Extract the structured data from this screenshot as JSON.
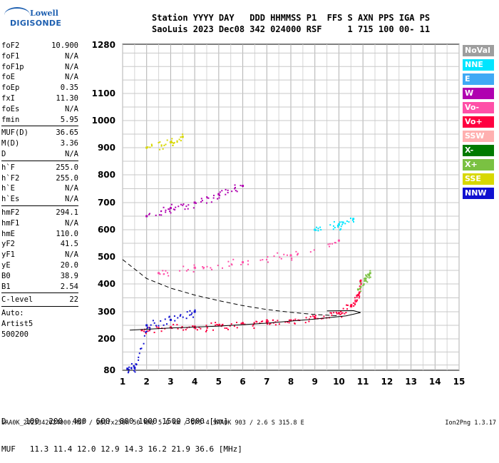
{
  "logo": {
    "line1": "Lowell",
    "line2": "DIGISONDE"
  },
  "header": {
    "line1": "Station YYYY DAY   DDD HHMMSS P1  FFS S AXN PPS IGA PS",
    "line2": "SaoLuis 2023 Dec08 342 024000 RSF     1 715 100 00- 11"
  },
  "params": {
    "groups": [
      [
        {
          "name": "foF2",
          "value": "10.900"
        },
        {
          "name": "foF1",
          "value": "N/A"
        },
        {
          "name": "foF1p",
          "value": "N/A"
        },
        {
          "name": "foE",
          "value": "N/A"
        },
        {
          "name": "foEp",
          "value": "0.35"
        },
        {
          "name": "fxI",
          "value": "11.30"
        },
        {
          "name": "foEs",
          "value": "N/A"
        },
        {
          "name": "fmin",
          "value": "5.95"
        }
      ],
      [
        {
          "name": "MUF(D)",
          "value": "36.65"
        },
        {
          "name": "M(D)",
          "value": "3.36"
        },
        {
          "name": "D",
          "value": "N/A"
        }
      ],
      [
        {
          "name": "h`F",
          "value": "255.0"
        },
        {
          "name": "h`F2",
          "value": "255.0"
        },
        {
          "name": "h`E",
          "value": "N/A"
        },
        {
          "name": "h`Es",
          "value": "N/A"
        }
      ],
      [
        {
          "name": "hmF2",
          "value": "294.1"
        },
        {
          "name": "hmF1",
          "value": "N/A"
        },
        {
          "name": "hmE",
          "value": "110.0"
        },
        {
          "name": "yF2",
          "value": "41.5"
        },
        {
          "name": "yF1",
          "value": "N/A"
        },
        {
          "name": "yE",
          "value": "20.0"
        },
        {
          "name": "B0",
          "value": "38.9"
        },
        {
          "name": "B1",
          "value": "2.54"
        }
      ],
      [
        {
          "name": "C-level",
          "value": "22"
        }
      ]
    ],
    "footer_lines": [
      "Auto:",
      "Artist5",
      "500200"
    ]
  },
  "legend": [
    {
      "label": "NoVal",
      "color": "#9e9e9e"
    },
    {
      "label": "NNE",
      "color": "#00e5ff"
    },
    {
      "label": "E",
      "color": "#3fa9f5"
    },
    {
      "label": "W",
      "color": "#b000b0"
    },
    {
      "label": "Vo-",
      "color": "#ff4fa8"
    },
    {
      "label": "Vo+",
      "color": "#ff0040"
    },
    {
      "label": "SSW",
      "color": "#ffb0b0"
    },
    {
      "label": "X-",
      "color": "#007a00"
    },
    {
      "label": "X+",
      "color": "#7ac142"
    },
    {
      "label": "SSE",
      "color": "#d8d800"
    },
    {
      "label": "NNW",
      "color": "#1010d0"
    }
  ],
  "chart_data": {
    "type": "scatter",
    "title": "",
    "xlabel": "",
    "ylabel": "",
    "xlim": [
      1,
      15
    ],
    "ylim_log": [
      80,
      1280
    ],
    "y_scale": "log",
    "grid": true,
    "legend_position": "right",
    "x_ticks": [
      1,
      2,
      3,
      4,
      5,
      6,
      7,
      8,
      9,
      10,
      11,
      12,
      13,
      14,
      15
    ],
    "y_ticks": [
      80,
      200,
      300,
      400,
      500,
      600,
      700,
      800,
      900,
      1000,
      1100,
      1280
    ],
    "series": [
      {
        "name": "Vo+",
        "points": [
          [
            1.8,
            232
          ],
          [
            3,
            242
          ],
          [
            4,
            245
          ],
          [
            5,
            250
          ],
          [
            6,
            258
          ],
          [
            7,
            262
          ],
          [
            8,
            268
          ],
          [
            9,
            278
          ],
          [
            10,
            295
          ],
          [
            10.5,
            320
          ],
          [
            10.8,
            360
          ],
          [
            10.9,
            410
          ]
        ]
      },
      {
        "name": "Vo-",
        "points": [
          [
            2.5,
            440
          ],
          [
            4,
            460
          ],
          [
            6,
            480
          ],
          [
            8,
            505
          ],
          [
            10,
            560
          ]
        ]
      },
      {
        "name": "W",
        "points": [
          [
            2,
            650
          ],
          [
            3,
            680
          ],
          [
            4,
            700
          ],
          [
            5,
            730
          ],
          [
            6,
            760
          ]
        ]
      },
      {
        "name": "NNW",
        "points": [
          [
            1.2,
            86
          ],
          [
            1.5,
            90
          ],
          [
            2,
            250
          ],
          [
            3,
            270
          ],
          [
            4,
            300
          ]
        ]
      },
      {
        "name": "SSE",
        "points": [
          [
            2,
            900
          ],
          [
            3,
            920
          ],
          [
            3.5,
            940
          ]
        ]
      },
      {
        "name": "NNE",
        "points": [
          [
            9,
            600
          ],
          [
            10,
            620
          ],
          [
            10.6,
            640
          ]
        ]
      },
      {
        "name": "X+",
        "points": [
          [
            10.8,
            380
          ],
          [
            11.1,
            420
          ],
          [
            11.3,
            440
          ]
        ]
      }
    ],
    "trace_solid": [
      [
        1.3,
        232
      ],
      [
        3,
        240
      ],
      [
        5,
        247
      ],
      [
        7,
        258
      ],
      [
        9,
        273
      ],
      [
        10.3,
        285
      ],
      [
        10.9,
        297
      ],
      [
        10.6,
        304
      ],
      [
        9.5,
        303
      ]
    ],
    "trace_dashed": [
      [
        1.0,
        490
      ],
      [
        2,
        420
      ],
      [
        3,
        385
      ],
      [
        4,
        360
      ],
      [
        5,
        340
      ],
      [
        6,
        322
      ],
      [
        7,
        308
      ],
      [
        8,
        298
      ],
      [
        9,
        290
      ],
      [
        10,
        285
      ]
    ]
  },
  "distance_table": {
    "d_label": "D",
    "d_values": [
      "100",
      "200",
      "400",
      "600",
      "800",
      "1000",
      "1500",
      "3000"
    ],
    "d_unit": "[km]",
    "muf_label": "MUF",
    "muf_values": [
      "11.3",
      "11.4",
      "12.0",
      "12.9",
      "14.3",
      "16.2",
      "21.9",
      "36.6"
    ],
    "muf_unit": "[MHz]"
  },
  "footer": {
    "left": "SAA0K_2023342024000.RSF / 280fx256h 50 kHz 5.0 km / DPS-4 SAA0K 903 / 2.6 S 315.8 E",
    "right": "Ion2Png 1.3.17"
  }
}
